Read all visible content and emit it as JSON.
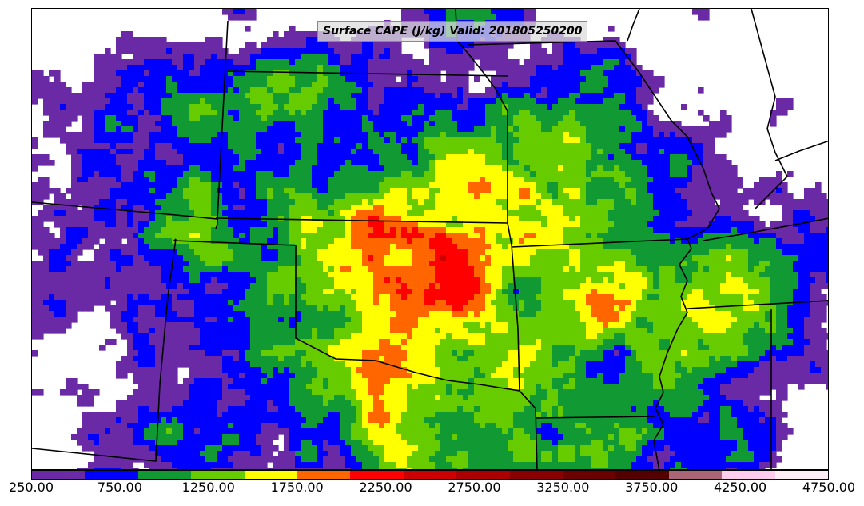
{
  "title": "Surface CAPE (J/kg) Valid: 201805250200",
  "colorbar": {
    "ticks": [
      "250.00",
      "750.00",
      "1250.00",
      "1750.00",
      "2250.00",
      "2750.00",
      "3250.00",
      "3750.00",
      "4250.00",
      "4750.00"
    ],
    "colors": [
      "#6a2aa6",
      "#0000ff",
      "#119933",
      "#66cc00",
      "#ffff00",
      "#ff6600",
      "#ff0000",
      "#cc0000",
      "#aa0000",
      "#880000",
      "#6a0000",
      "#550000",
      "#aa6677",
      "#ffccee",
      "#ffeef6"
    ]
  },
  "map": {
    "fill_levels": [
      "#6a2aa6",
      "#0000ff",
      "#119933",
      "#66cc00",
      "#ffff00",
      "#ff6600",
      "#ff0000",
      "#cc0000",
      "#990000",
      "#6a0000",
      "#4a0000",
      "#aa6677",
      "#ffccee"
    ]
  }
}
